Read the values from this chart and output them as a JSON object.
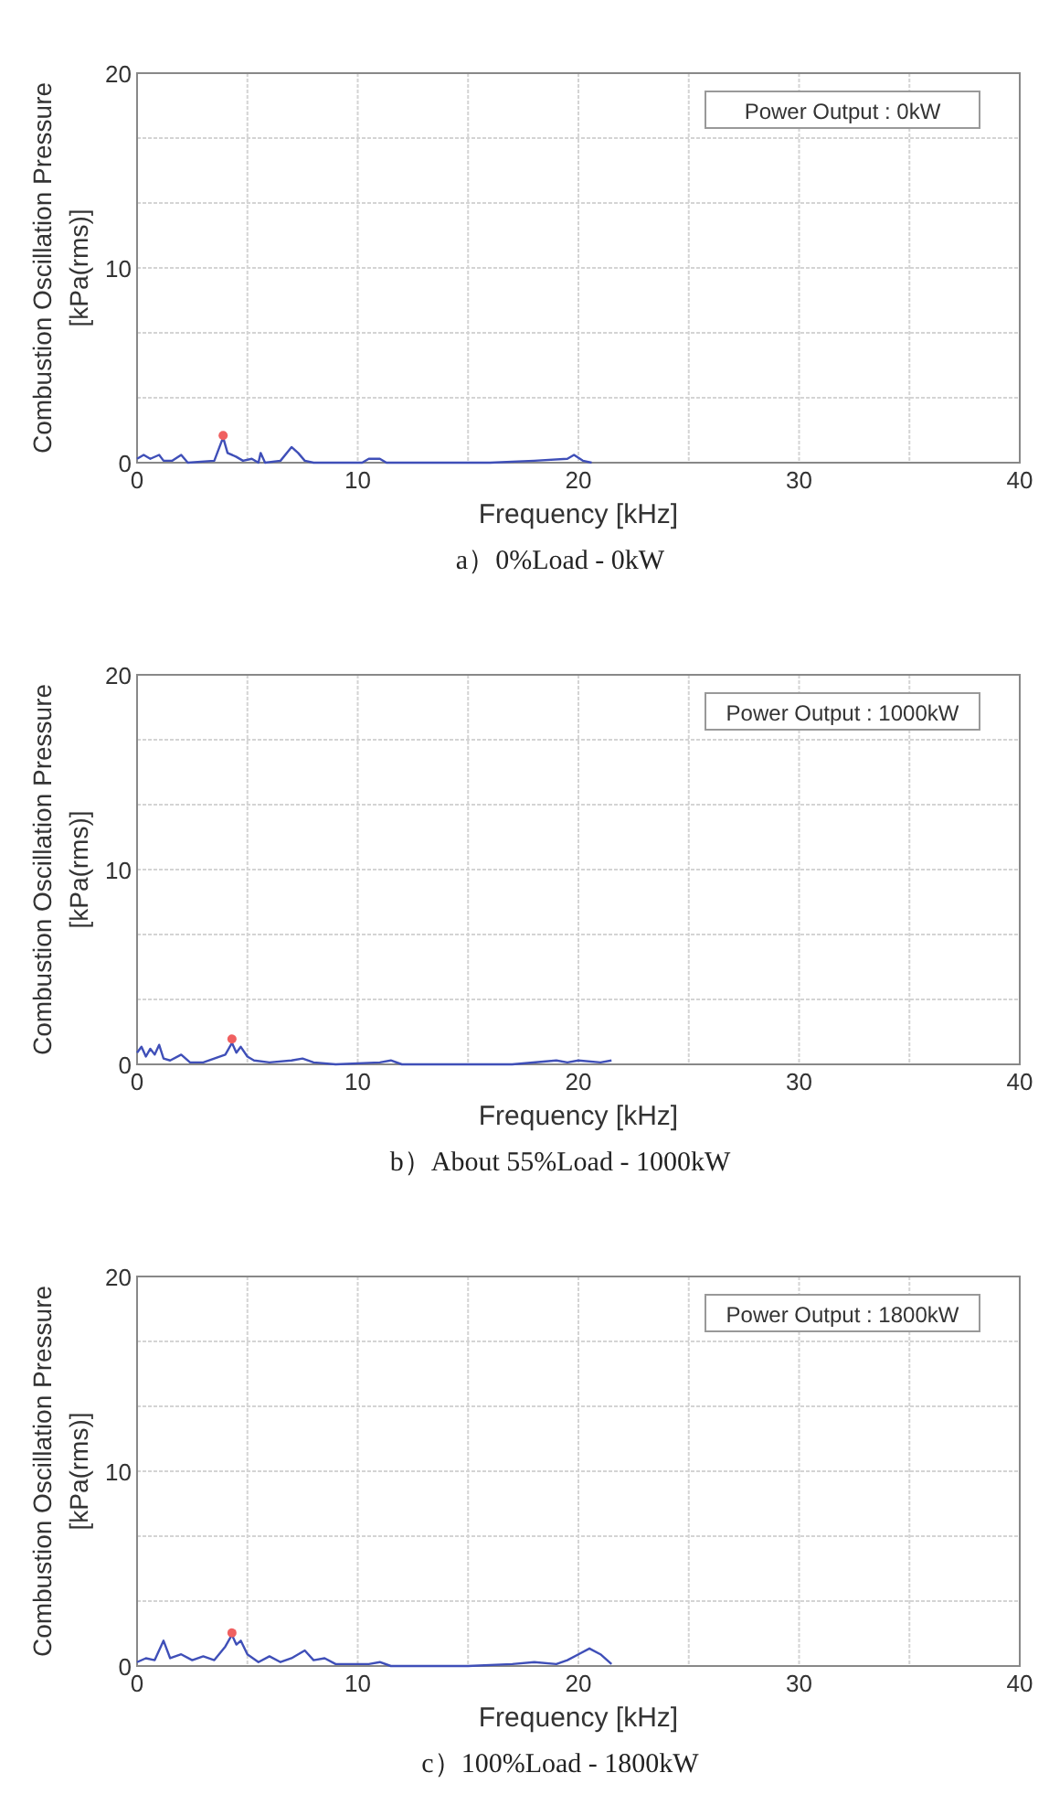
{
  "chart_data": [
    {
      "type": "line",
      "xlabel": "Frequency [kHz]",
      "ylabel": "Combustion Oscillation Pressure\n[kPa(rms)]",
      "xlim": [
        0,
        40
      ],
      "ylim": [
        0,
        20
      ],
      "xticks": [
        0,
        {
          "value": 5,
          "label": null
        },
        10,
        {
          "value": 15,
          "label": null
        },
        20,
        {
          "value": 25,
          "label": null
        },
        30,
        {
          "value": 35,
          "label": null
        },
        40
      ],
      "yticks": [
        0,
        {
          "value": 3.33,
          "label": null
        },
        {
          "value": 6.67,
          "label": null
        },
        10,
        {
          "value": 13.33,
          "label": null
        },
        {
          "value": 16.67,
          "label": null
        },
        20
      ],
      "grid": true,
      "annotations": [
        "Power Output : 0kW",
        "a）0%Load - 0kW"
      ],
      "series": [
        {
          "color": "#3f4fb8",
          "x": [
            0,
            0.3,
            0.6,
            1,
            1.2,
            1.6,
            2,
            2.3,
            3.5,
            3.9,
            4.1,
            4.5,
            4.8,
            5.2,
            5.5,
            5.6,
            5.8,
            6.5,
            7,
            7.3,
            7.6,
            8,
            9,
            10.2,
            10.5,
            11,
            11.3,
            14.5,
            16,
            18,
            19.5,
            19.8,
            20.2,
            20.6
          ],
          "values": [
            0.2,
            0.4,
            0.2,
            0.4,
            0.1,
            0.1,
            0.4,
            0,
            0.1,
            1.3,
            0.5,
            0.3,
            0.1,
            0.2,
            0,
            0.5,
            0,
            0.1,
            0.8,
            0.5,
            0.1,
            0,
            0,
            0,
            0.2,
            0.2,
            0,
            0,
            0,
            0.1,
            0.2,
            0.4,
            0.1,
            0
          ]
        },
        {
          "type": "scatter",
          "color": "#f06060",
          "x": [
            3.9
          ],
          "values": [
            1.4
          ]
        }
      ]
    },
    {
      "type": "line",
      "xlabel": "Frequency [kHz]",
      "ylabel": "Combustion Oscillation Pressure\n[kPa(rms)]",
      "xlim": [
        0,
        40
      ],
      "ylim": [
        0,
        20
      ],
      "xticks": [
        0,
        {
          "value": 5,
          "label": null
        },
        10,
        {
          "value": 15,
          "label": null
        },
        20,
        {
          "value": 25,
          "label": null
        },
        30,
        {
          "value": 35,
          "label": null
        },
        40
      ],
      "yticks": [
        0,
        {
          "value": 3.33,
          "label": null
        },
        {
          "value": 6.67,
          "label": null
        },
        10,
        {
          "value": 13.33,
          "label": null
        },
        {
          "value": 16.67,
          "label": null
        },
        20
      ],
      "grid": true,
      "annotations": [
        "Power Output : 1000kW",
        "b）About 55%Load - 1000kW"
      ],
      "series": [
        {
          "color": "#3f4fb8",
          "x": [
            0,
            0.2,
            0.4,
            0.6,
            0.8,
            1,
            1.2,
            1.5,
            2,
            2.4,
            3,
            3.5,
            4,
            4.3,
            4.5,
            4.7,
            5,
            5.3,
            6,
            7,
            7.5,
            8,
            9,
            11,
            11.5,
            12,
            15,
            17,
            19,
            19.5,
            20,
            21,
            21.5
          ],
          "values": [
            0.6,
            0.9,
            0.4,
            0.8,
            0.5,
            1,
            0.3,
            0.2,
            0.5,
            0.1,
            0.1,
            0.3,
            0.5,
            1.1,
            0.6,
            0.9,
            0.4,
            0.2,
            0.1,
            0.2,
            0.3,
            0.1,
            0,
            0.1,
            0.2,
            0,
            0,
            0,
            0.2,
            0.1,
            0.2,
            0.1,
            0.2
          ]
        },
        {
          "type": "scatter",
          "color": "#f06060",
          "x": [
            4.3
          ],
          "values": [
            1.3
          ]
        }
      ]
    },
    {
      "type": "line",
      "xlabel": "Frequency [kHz]",
      "ylabel": "Combustion Oscillation Pressure\n[kPa(rms)]",
      "xlim": [
        0,
        40
      ],
      "ylim": [
        0,
        20
      ],
      "xticks": [
        0,
        {
          "value": 5,
          "label": null
        },
        10,
        {
          "value": 15,
          "label": null
        },
        20,
        {
          "value": 25,
          "label": null
        },
        30,
        {
          "value": 35,
          "label": null
        },
        40
      ],
      "yticks": [
        0,
        {
          "value": 3.33,
          "label": null
        },
        {
          "value": 6.67,
          "label": null
        },
        10,
        {
          "value": 13.33,
          "label": null
        },
        {
          "value": 16.67,
          "label": null
        },
        20
      ],
      "grid": true,
      "annotations": [
        "Power Output : 1800kW",
        "c）100%Load - 1800kW"
      ],
      "series": [
        {
          "color": "#3f4fb8",
          "x": [
            0,
            0.4,
            0.8,
            1.2,
            1.5,
            2,
            2.5,
            3,
            3.5,
            4,
            4.3,
            4.5,
            4.7,
            5,
            5.5,
            6,
            6.5,
            7,
            7.6,
            8,
            8.5,
            9,
            10.5,
            11,
            11.5,
            13,
            15,
            17,
            18,
            19,
            19.5,
            20,
            20.5,
            21,
            21.5
          ],
          "values": [
            0.2,
            0.4,
            0.3,
            1.3,
            0.4,
            0.6,
            0.3,
            0.5,
            0.3,
            1.0,
            1.6,
            1.1,
            1.3,
            0.6,
            0.2,
            0.5,
            0.2,
            0.4,
            0.8,
            0.3,
            0.4,
            0.1,
            0.1,
            0.2,
            0,
            0,
            0,
            0.1,
            0.2,
            0.1,
            0.3,
            0.6,
            0.9,
            0.6,
            0.1
          ]
        },
        {
          "type": "scatter",
          "color": "#f06060",
          "x": [
            4.3
          ],
          "values": [
            1.7
          ]
        }
      ]
    }
  ]
}
